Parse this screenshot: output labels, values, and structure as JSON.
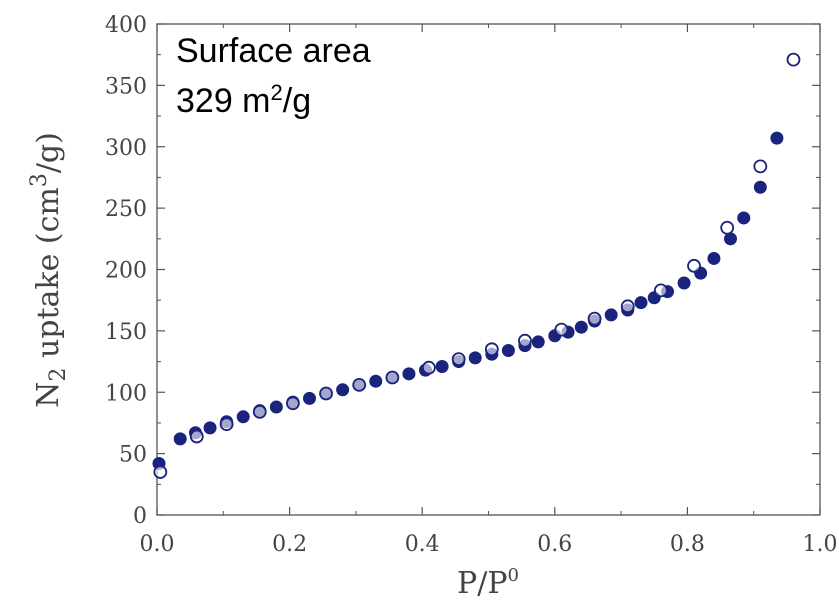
{
  "chart_data": {
    "type": "scatter",
    "title": "",
    "xlabel": {
      "base": "P/P",
      "sup": "0"
    },
    "ylabel": {
      "pre": "N",
      "sub": "2",
      "mid": " uptake (cm",
      "sup": "3",
      "post": "/g)"
    },
    "xlim": [
      0.0,
      1.0
    ],
    "ylim": [
      0,
      400
    ],
    "xticks": [
      "0.0",
      "0.2",
      "0.4",
      "0.6",
      "0.8",
      "1.0"
    ],
    "yticks": [
      "0",
      "50",
      "100",
      "150",
      "200",
      "250",
      "300",
      "350",
      "400"
    ],
    "grid": false,
    "annotation": {
      "line1": "Surface area",
      "line2_pre": "329 m",
      "line2_sup": "2",
      "line2_post": "/g"
    },
    "series": [
      {
        "marker": "filled-circle",
        "color": "#1a237e",
        "x": [
          0.003,
          0.035,
          0.058,
          0.08,
          0.105,
          0.13,
          0.155,
          0.18,
          0.205,
          0.23,
          0.255,
          0.28,
          0.305,
          0.33,
          0.355,
          0.38,
          0.405,
          0.43,
          0.455,
          0.48,
          0.505,
          0.53,
          0.555,
          0.575,
          0.6,
          0.62,
          0.64,
          0.66,
          0.685,
          0.71,
          0.73,
          0.75,
          0.77,
          0.795,
          0.82,
          0.84,
          0.865,
          0.885,
          0.91,
          0.935
        ],
        "y": [
          42,
          62,
          67,
          71,
          76,
          80,
          85,
          88,
          92,
          95,
          99,
          102,
          106,
          109,
          112,
          115,
          118,
          121,
          125,
          128,
          131,
          134,
          138,
          141,
          146,
          149,
          153,
          158,
          163,
          167,
          173,
          177,
          182,
          189,
          197,
          209,
          225,
          242,
          267,
          307
        ]
      },
      {
        "marker": "open-circle",
        "color": "#1a237e",
        "x": [
          0.005,
          0.06,
          0.105,
          0.155,
          0.205,
          0.255,
          0.305,
          0.355,
          0.41,
          0.455,
          0.505,
          0.555,
          0.61,
          0.66,
          0.71,
          0.76,
          0.81,
          0.86,
          0.91,
          0.96
        ],
        "y": [
          35,
          64,
          74,
          84,
          91,
          99,
          106,
          112,
          120,
          127,
          135,
          142,
          151,
          160,
          170,
          183,
          203,
          234,
          284,
          371
        ]
      }
    ]
  }
}
